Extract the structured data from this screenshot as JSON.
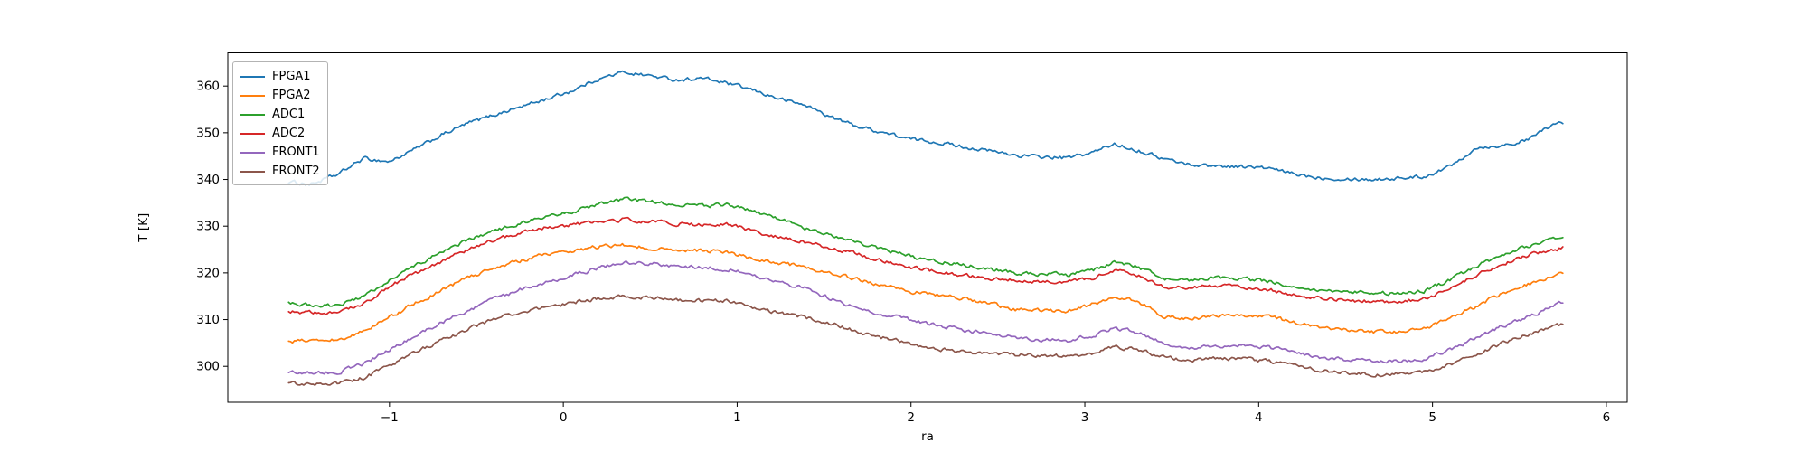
{
  "chart_data": {
    "type": "line",
    "title": "",
    "xlabel": "ra",
    "ylabel": "T [K]",
    "xlim": [
      -1.93,
      6.12
    ],
    "ylim": [
      292.3,
      367.1
    ],
    "grid": false,
    "legend_position": "upper-left",
    "x_ticks": [
      -1,
      0,
      1,
      2,
      3,
      4,
      5,
      6
    ],
    "x_tick_labels": [
      "−1",
      "0",
      "1",
      "2",
      "3",
      "4",
      "5",
      "6"
    ],
    "y_ticks": [
      300,
      310,
      320,
      330,
      340,
      350,
      360
    ],
    "y_tick_labels": [
      "300",
      "310",
      "320",
      "330",
      "340",
      "350",
      "360"
    ],
    "noise_amplitude": 0.42,
    "x": [
      -1.58,
      -1.45,
      -1.3,
      -1.15,
      -1.0,
      -0.85,
      -0.7,
      -0.55,
      -0.4,
      -0.25,
      -0.1,
      0.05,
      0.2,
      0.35,
      0.5,
      0.65,
      0.8,
      0.95,
      1.1,
      1.25,
      1.4,
      1.55,
      1.7,
      1.85,
      2.0,
      2.15,
      2.3,
      2.45,
      2.6,
      2.75,
      2.9,
      3.05,
      3.17,
      3.3,
      3.45,
      3.6,
      3.75,
      3.9,
      4.05,
      4.2,
      4.35,
      4.5,
      4.65,
      4.8,
      4.95,
      5.1,
      5.25,
      5.4,
      5.55,
      5.65,
      5.75
    ],
    "series": [
      {
        "name": "FPGA1",
        "color": "#1f77b4",
        "values": [
          339.5,
          339.0,
          341.0,
          344.5,
          343.8,
          346.5,
          349.5,
          352.0,
          353.8,
          355.5,
          357.2,
          359.0,
          361.5,
          363.0,
          362.2,
          361.3,
          361.7,
          360.5,
          359.0,
          357.2,
          355.8,
          353.2,
          351.3,
          350.0,
          348.6,
          348.0,
          347.0,
          346.1,
          345.2,
          344.8,
          344.6,
          345.8,
          347.6,
          346.3,
          344.5,
          343.2,
          342.9,
          342.8,
          342.4,
          341.2,
          340.4,
          340.2,
          340.0,
          340.3,
          340.6,
          342.8,
          346.8,
          347.3,
          348.4,
          351.0,
          352.2
        ]
      },
      {
        "name": "FPGA2",
        "color": "#ff7f0e",
        "values": [
          305.4,
          305.4,
          305.6,
          307.5,
          310.5,
          313.5,
          316.3,
          319.0,
          321.0,
          322.6,
          324.0,
          324.8,
          325.6,
          326.0,
          325.3,
          325.0,
          324.8,
          324.4,
          322.9,
          322.0,
          321.3,
          319.8,
          318.6,
          317.2,
          316.0,
          315.2,
          314.5,
          313.5,
          312.2,
          311.9,
          311.9,
          313.3,
          314.8,
          314.0,
          310.8,
          310.2,
          310.6,
          311.0,
          310.7,
          309.4,
          308.4,
          307.7,
          307.4,
          307.3,
          307.9,
          310.4,
          312.8,
          315.7,
          317.6,
          318.8,
          319.9
        ]
      },
      {
        "name": "ADC1",
        "color": "#2ca02c",
        "values": [
          313.4,
          313.2,
          312.9,
          315.0,
          318.5,
          321.5,
          324.4,
          327.0,
          329.0,
          330.6,
          332.0,
          333.1,
          334.6,
          335.7,
          335.3,
          334.5,
          334.3,
          334.6,
          333.0,
          331.4,
          329.5,
          328.0,
          326.5,
          324.9,
          323.5,
          322.5,
          321.7,
          320.8,
          320.0,
          319.8,
          319.6,
          320.6,
          322.3,
          321.4,
          318.7,
          318.5,
          319.1,
          318.8,
          318.2,
          317.2,
          316.3,
          315.9,
          315.7,
          315.6,
          316.1,
          318.4,
          321.5,
          323.8,
          325.7,
          326.8,
          327.4
        ]
      },
      {
        "name": "ADC2",
        "color": "#d62728",
        "values": [
          311.7,
          311.5,
          311.3,
          313.4,
          317.0,
          320.0,
          322.5,
          325.0,
          327.0,
          328.6,
          329.8,
          330.3,
          330.9,
          331.4,
          331.0,
          330.5,
          330.3,
          330.4,
          328.8,
          327.6,
          326.6,
          325.3,
          324.0,
          322.4,
          321.2,
          320.3,
          319.5,
          318.9,
          318.4,
          318.1,
          317.9,
          318.9,
          320.5,
          319.7,
          316.9,
          316.8,
          317.3,
          317.0,
          316.4,
          315.4,
          314.5,
          314.1,
          313.9,
          313.9,
          314.4,
          316.6,
          319.5,
          321.9,
          323.8,
          324.7,
          325.3
        ]
      },
      {
        "name": "FRONT1",
        "color": "#9467bd",
        "values": [
          298.8,
          298.7,
          298.7,
          300.5,
          303.5,
          306.5,
          309.3,
          312.0,
          314.4,
          316.4,
          318.0,
          319.4,
          321.0,
          322.2,
          322.0,
          321.5,
          321.1,
          320.8,
          319.3,
          317.7,
          316.8,
          314.3,
          312.5,
          311.0,
          309.8,
          308.8,
          307.8,
          306.9,
          306.2,
          305.7,
          305.5,
          306.6,
          308.1,
          307.4,
          304.8,
          304.0,
          304.3,
          304.5,
          304.1,
          303.0,
          302.0,
          301.4,
          301.2,
          301.2,
          301.6,
          303.5,
          306.0,
          308.6,
          310.6,
          312.1,
          313.9
        ]
      },
      {
        "name": "FRONT2",
        "color": "#8c564b",
        "values": [
          296.3,
          296.3,
          296.4,
          297.5,
          300.0,
          303.0,
          305.5,
          308.0,
          310.0,
          311.6,
          312.8,
          313.6,
          314.5,
          315.0,
          314.8,
          314.3,
          314.0,
          314.0,
          312.5,
          311.3,
          310.4,
          309.2,
          307.3,
          306.0,
          304.8,
          303.8,
          303.1,
          302.8,
          302.5,
          302.3,
          302.2,
          302.9,
          304.2,
          303.6,
          302.0,
          301.4,
          301.7,
          301.6,
          301.1,
          300.1,
          299.2,
          298.6,
          298.3,
          298.3,
          298.8,
          300.4,
          302.6,
          304.9,
          306.9,
          308.0,
          309.1
        ]
      }
    ]
  }
}
